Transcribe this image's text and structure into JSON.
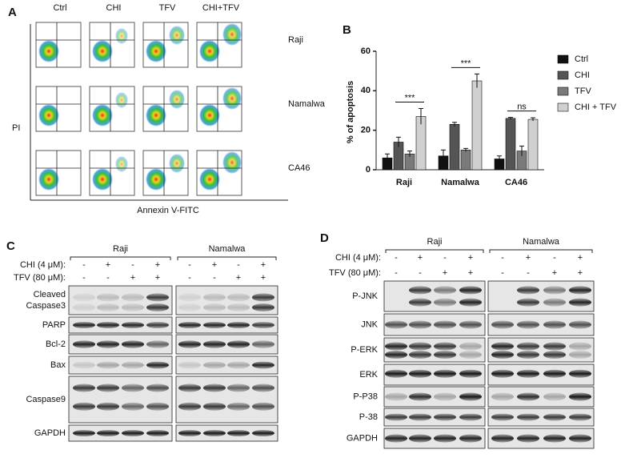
{
  "panel_a": {
    "label": "A",
    "columns": [
      "Ctrl",
      "CHI",
      "TFV",
      "CHI+TFV"
    ],
    "rows": [
      "Raji",
      "Namalwa",
      "CA46"
    ],
    "y_label": "PI",
    "x_label": "Annexin V-FITC"
  },
  "chart_data": {
    "type": "bar",
    "label": "B",
    "y_label": "% of apoptosis",
    "categories": [
      "Raji",
      "Namalwa",
      "CA46"
    ],
    "series": [
      {
        "name": "Ctrl",
        "color": "#111111",
        "values": [
          6,
          7,
          5.5
        ],
        "errors": [
          2,
          3,
          1.5
        ]
      },
      {
        "name": "CHI",
        "color": "#555555",
        "values": [
          14,
          23,
          26
        ],
        "errors": [
          2.5,
          1,
          0.5
        ]
      },
      {
        "name": "TFV",
        "color": "#7a7a7a",
        "values": [
          8,
          10,
          9.5
        ],
        "errors": [
          1.5,
          0.8,
          2.5
        ]
      },
      {
        "name": "CHI + TFV",
        "color": "#d0d0d0",
        "values": [
          27,
          45,
          25.5
        ],
        "errors": [
          4,
          3.5,
          0.8
        ]
      }
    ],
    "annotations": [
      "***",
      "***",
      "ns"
    ],
    "ylim": [
      0,
      60
    ],
    "yticks": [
      0,
      20,
      40,
      60
    ]
  },
  "panel_c": {
    "label": "C",
    "groups": [
      "Raji",
      "Namalwa"
    ],
    "treatments": [
      {
        "label": "CHI (4 μM):",
        "signs": [
          "-",
          "+",
          "-",
          "+",
          "-",
          "+",
          "-",
          "+"
        ]
      },
      {
        "label": "TFV (80 μM):",
        "signs": [
          "-",
          "-",
          "+",
          "+",
          "-",
          "-",
          "+",
          "+"
        ]
      }
    ],
    "rows": [
      {
        "label": [
          "Cleaved",
          "Caspase3"
        ]
      },
      {
        "label": [
          "PARP"
        ]
      },
      {
        "label": [
          "Bcl-2"
        ]
      },
      {
        "label": [
          "Bax"
        ]
      },
      {
        "label": [
          "Caspase9"
        ]
      },
      {
        "label": [
          "GAPDH"
        ]
      }
    ]
  },
  "panel_d": {
    "label": "D",
    "groups": [
      "Raji",
      "Namalwa"
    ],
    "treatments": [
      {
        "label": "CHI (4 μM):",
        "signs": [
          "-",
          "+",
          "-",
          "+",
          "-",
          "+",
          "-",
          "+"
        ]
      },
      {
        "label": "TFV (80 μM):",
        "signs": [
          "-",
          "-",
          "+",
          "+",
          "-",
          "-",
          "+",
          "+"
        ]
      }
    ],
    "rows": [
      {
        "label": [
          "P-JNK"
        ]
      },
      {
        "label": [
          "JNK"
        ]
      },
      {
        "label": [
          "P-ERK"
        ]
      },
      {
        "label": [
          "ERK"
        ]
      },
      {
        "label": [
          "P-P38"
        ]
      },
      {
        "label": [
          "P-38"
        ]
      },
      {
        "label": [
          "GAPDH"
        ]
      }
    ]
  }
}
